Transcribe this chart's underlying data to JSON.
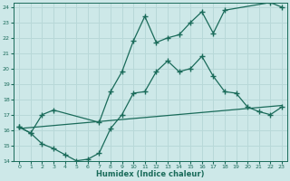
{
  "xlabel": "Humidex (Indice chaleur)",
  "bg_color": "#cde8e8",
  "grid_color": "#b8d8d8",
  "line_color": "#1a6b5a",
  "xlim": [
    -0.5,
    23.5
  ],
  "ylim": [
    14,
    24.3
  ],
  "yticks": [
    14,
    15,
    16,
    17,
    18,
    19,
    20,
    21,
    22,
    23,
    24
  ],
  "xticks": [
    0,
    1,
    2,
    3,
    4,
    5,
    6,
    7,
    8,
    9,
    10,
    11,
    12,
    13,
    14,
    15,
    16,
    17,
    18,
    19,
    20,
    21,
    22,
    23
  ],
  "line1_x": [
    0,
    1,
    2,
    3,
    7,
    8,
    9,
    10,
    11,
    12,
    13,
    14,
    15,
    16,
    17,
    18,
    22,
    23
  ],
  "line1_y": [
    16.2,
    15.8,
    17.0,
    17.3,
    16.5,
    18.5,
    19.8,
    21.8,
    23.4,
    21.7,
    22.0,
    22.2,
    23.0,
    23.7,
    22.3,
    23.8,
    24.3,
    24.0
  ],
  "line2_x": [
    0,
    1,
    2,
    3,
    4,
    5,
    6,
    7,
    8,
    9,
    10,
    11,
    12,
    13,
    14,
    15,
    16,
    17,
    18,
    19,
    20,
    21,
    22,
    23
  ],
  "line2_y": [
    16.2,
    15.8,
    15.1,
    14.8,
    14.4,
    14.0,
    14.1,
    14.5,
    16.1,
    17.0,
    18.4,
    18.5,
    19.8,
    20.5,
    19.8,
    20.0,
    20.8,
    19.5,
    18.5,
    18.4,
    17.5,
    17.2,
    17.0,
    17.5
  ],
  "line3_x": [
    0,
    23
  ],
  "line3_y": [
    16.1,
    17.6
  ]
}
